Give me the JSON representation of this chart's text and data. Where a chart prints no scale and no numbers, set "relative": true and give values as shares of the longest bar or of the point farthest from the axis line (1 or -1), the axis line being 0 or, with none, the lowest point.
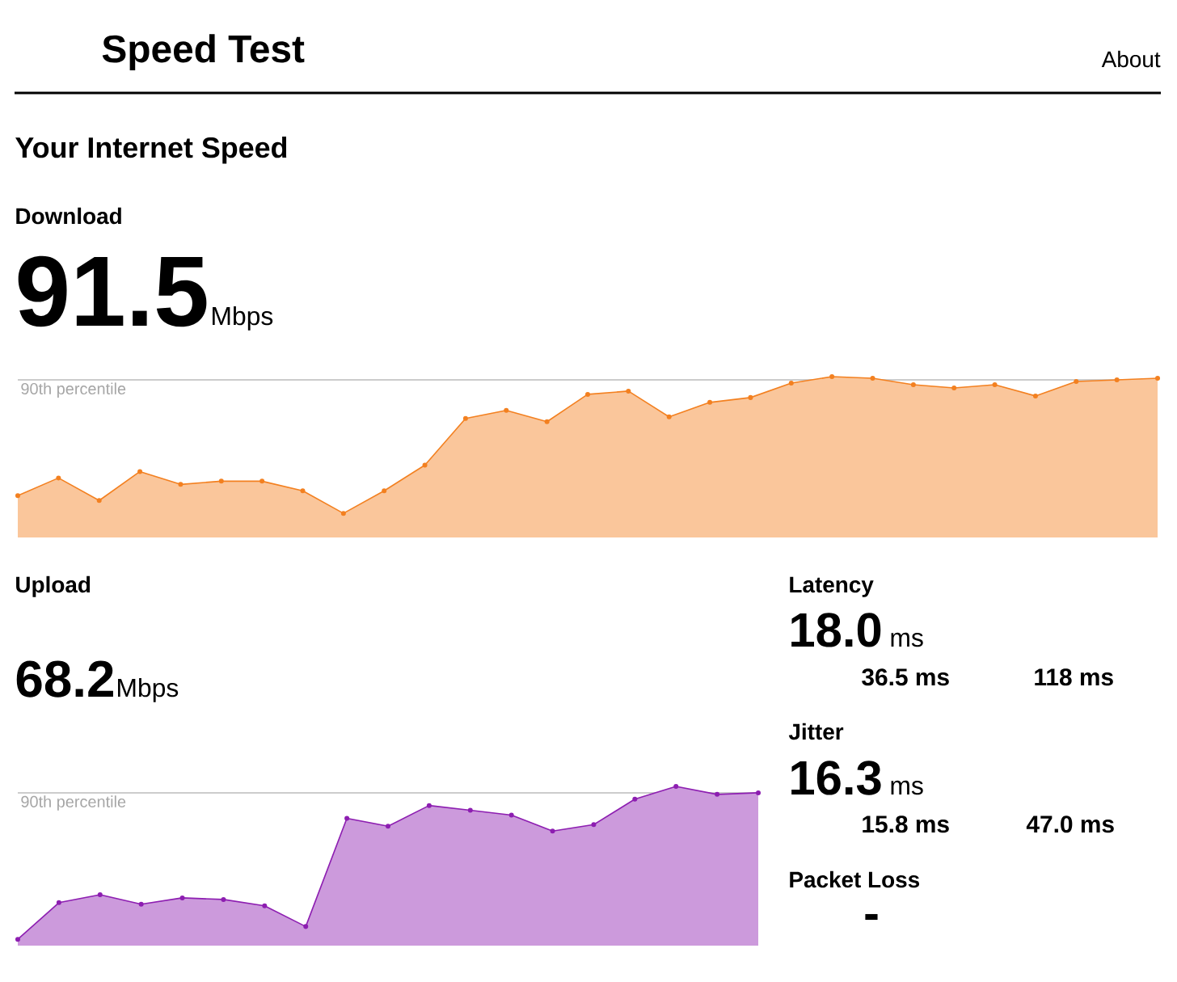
{
  "chart_data": [
    {
      "type": "other",
      "title": "Speed Test",
      "annotations": [
        "About",
        "Your Internet Speed"
      ]
    },
    {
      "type": "area",
      "title": "Download",
      "annotations": [
        "91.5",
        "Mbps"
      ],
      "relative": true,
      "marker": "circle",
      "categories": [
        null,
        null,
        null,
        null,
        null,
        null,
        null,
        null,
        null,
        null,
        null,
        null,
        null,
        null,
        null,
        null,
        null,
        null,
        null,
        null,
        null,
        null,
        null,
        null,
        null,
        null,
        null,
        null,
        null
      ],
      "series": [
        {
          "color": "#f38020",
          "values": [
            0.26,
            0.37,
            0.23,
            0.41,
            0.33,
            0.35,
            0.35,
            0.29,
            0.15,
            0.29,
            0.45,
            0.74,
            0.79,
            0.72,
            0.89,
            0.91,
            0.75,
            0.84,
            0.87,
            0.96,
            1.0,
            0.99,
            0.95,
            0.93,
            0.95,
            0.88,
            0.97,
            0.98,
            0.99
          ]
        }
      ],
      "ref_lines": [
        {
          "axis": "y",
          "value": 0.98,
          "label": "90th percentile",
          "color": "#cccccc"
        }
      ]
    },
    {
      "type": "area",
      "title": "Upload",
      "annotations": [
        "68.2",
        "Mbps"
      ],
      "relative": true,
      "marker": "circle",
      "categories": [
        null,
        null,
        null,
        null,
        null,
        null,
        null,
        null,
        null,
        null,
        null,
        null,
        null,
        null,
        null,
        null,
        null,
        null,
        null
      ],
      "series": [
        {
          "color": "#8d1eb1",
          "values": [
            0.04,
            0.27,
            0.32,
            0.26,
            0.3,
            0.29,
            0.25,
            0.12,
            0.8,
            0.75,
            0.88,
            0.85,
            0.82,
            0.72,
            0.76,
            0.92,
            1.0,
            0.95,
            0.96
          ]
        }
      ],
      "ref_lines": [
        {
          "axis": "y",
          "value": 0.96,
          "label": "90th percentile",
          "color": "#cccccc"
        }
      ]
    },
    {
      "type": "other",
      "annotations": [
        "Latency",
        "18.0",
        "ms",
        "36.5 ms",
        "118 ms",
        "Jitter",
        "16.3",
        "ms",
        "15.8 ms",
        "47.0 ms",
        "Packet Loss",
        "-"
      ]
    }
  ]
}
